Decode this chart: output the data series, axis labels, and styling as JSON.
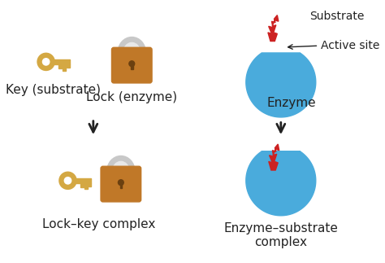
{
  "bg_color": "#ffffff",
  "key_color": "#D4A843",
  "key_shadow_color": "#B8922E",
  "lock_body_color": "#C07828",
  "lock_shackle_color": "#C8C8C8",
  "enzyme_color": "#4AABDC",
  "substrate_color": "#CC2222",
  "arrow_color": "#222222",
  "text_color": "#222222",
  "labels": {
    "key_substrate": "Key (substrate)",
    "lock_enzyme": "Lock (enzyme)",
    "lock_key_complex": "Lock–key complex",
    "enzyme_substrate_complex": "Enzyme–substrate\ncomplex",
    "substrate": "Substrate",
    "active_site": "Active site",
    "enzyme": "Enzyme"
  },
  "font_size": 11,
  "font_size_small": 10
}
